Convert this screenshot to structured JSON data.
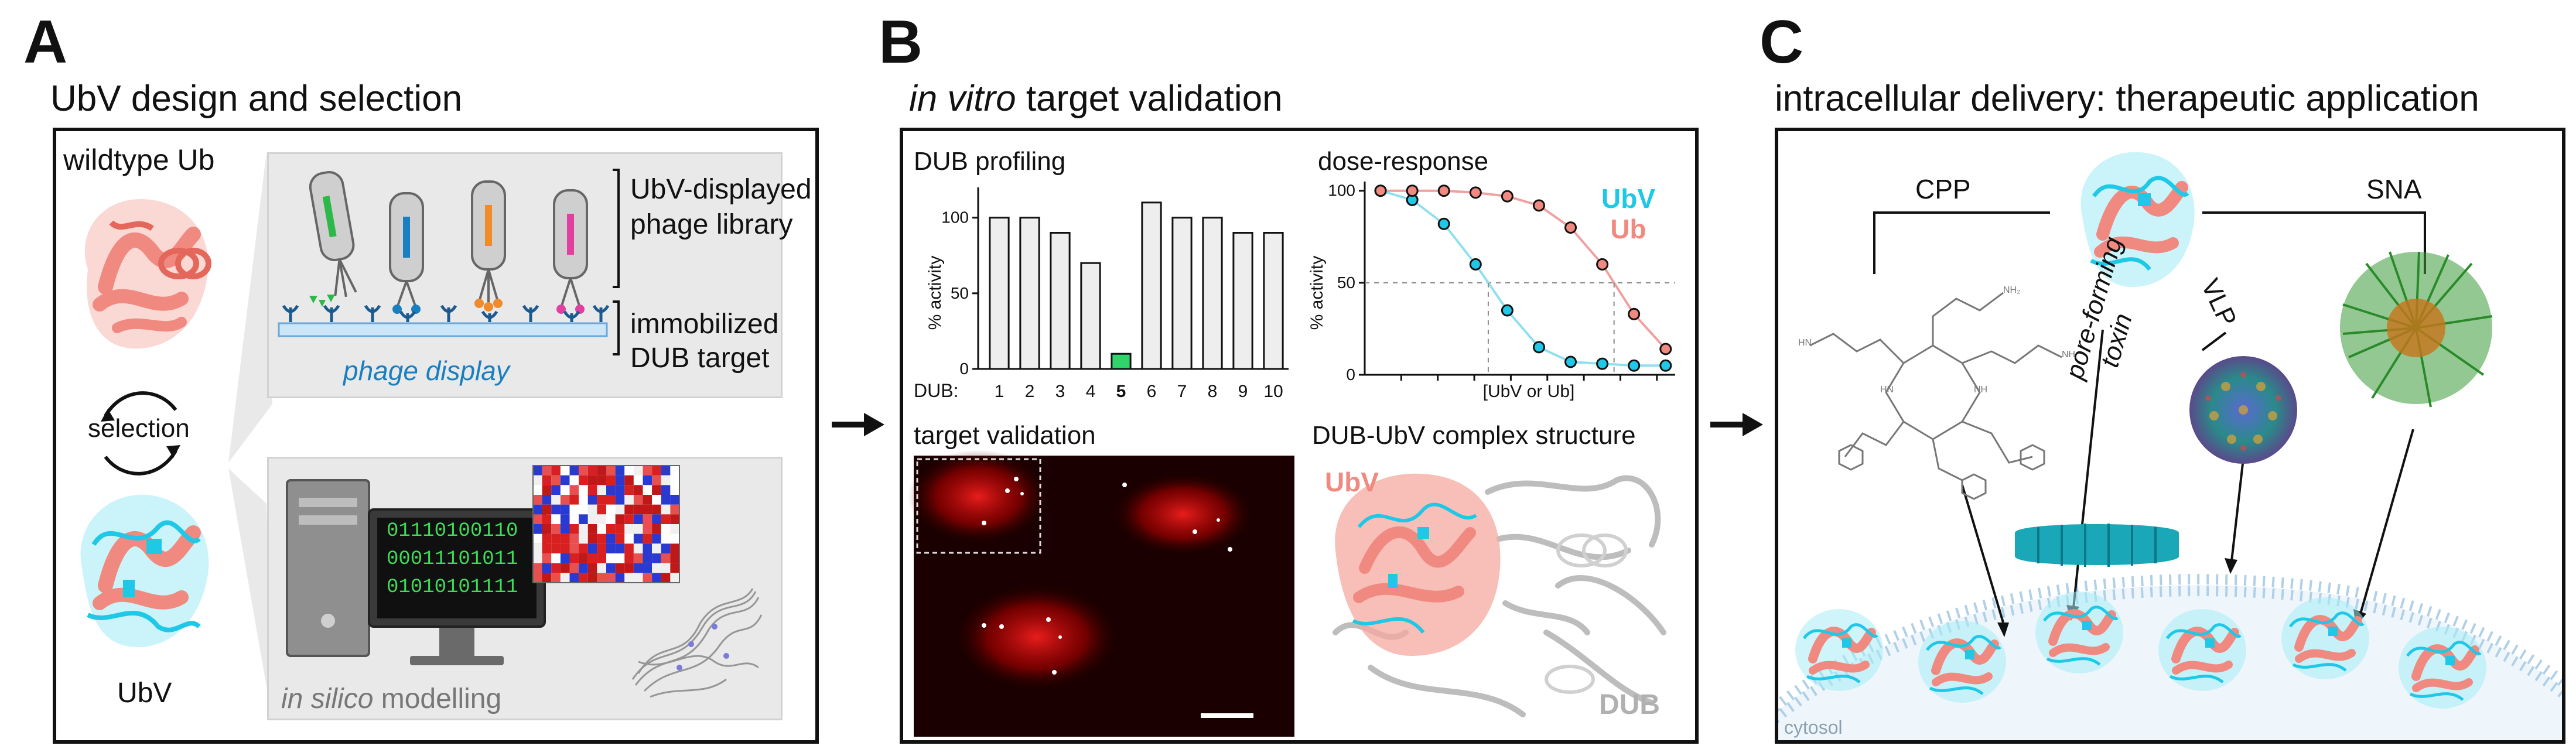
{
  "panel_a": {
    "letter": "A",
    "title": "UbV design and selection",
    "wildtype_label": "wildtype Ub",
    "selection_label": "selection",
    "ubv_label": "UbV",
    "phage_library_label": [
      "UbV-displayed",
      "phage library"
    ],
    "immobilized_label": [
      "immobilized",
      "DUB target"
    ],
    "phage_display_label": "phage display",
    "binary_lines": [
      "01110100110",
      "00011101011",
      "01010101111"
    ],
    "in_silico_label": "in silico",
    "modelling_label": " modelling"
  },
  "panel_b": {
    "letter": "B",
    "title_italic": "in vitro",
    "title_rest": " target validation",
    "target_validation_label": "target validation",
    "complex_label": "DUB-UbV complex structure",
    "ubv_label": "UbV",
    "dub_label": "DUB"
  },
  "panel_c": {
    "letter": "C",
    "title": "intracellular delivery: therapeutic application",
    "cpp_label": "CPP",
    "sna_label": "SNA",
    "vlp_label": "VLP",
    "toxin_label": [
      "pore-forming",
      "toxin"
    ],
    "cytosol_label": "cytosol"
  },
  "colors": {
    "ub_salmon": "#f08a80",
    "ubv_cyan": "#1ec8e6",
    "phage_blue": "#1a7fc0",
    "highlight_green": "#2fd46a",
    "dub_gray": "#b0b0b0"
  },
  "chart_data": [
    {
      "type": "bar",
      "title": "DUB profiling",
      "xlabel": "DUB:",
      "ylabel": "% activity",
      "categories": [
        "1",
        "2",
        "3",
        "4",
        "5",
        "6",
        "7",
        "8",
        "9",
        "10"
      ],
      "values": [
        100,
        100,
        90,
        70,
        10,
        110,
        100,
        100,
        90,
        90
      ],
      "highlight_category": "5",
      "yticks": [
        "0",
        "50",
        "100"
      ],
      "ylim": [
        0,
        120
      ]
    },
    {
      "type": "scatter",
      "title": "dose-response",
      "xlabel": "[UbV or Ub]",
      "ylabel": "% activity",
      "yticks": [
        "0",
        "50",
        "100"
      ],
      "ylim": [
        0,
        105
      ],
      "series": [
        {
          "name": "UbV",
          "x": [
            1,
            2,
            3,
            4,
            5,
            6,
            7,
            8,
            9,
            10
          ],
          "y": [
            100,
            95,
            82,
            60,
            35,
            15,
            7,
            6,
            5,
            5
          ]
        },
        {
          "name": "Ub",
          "x": [
            1,
            2,
            3,
            4,
            5,
            6,
            7,
            8,
            9,
            10
          ],
          "y": [
            100,
            100,
            100,
            99,
            97,
            92,
            80,
            60,
            33,
            14
          ]
        }
      ]
    }
  ]
}
